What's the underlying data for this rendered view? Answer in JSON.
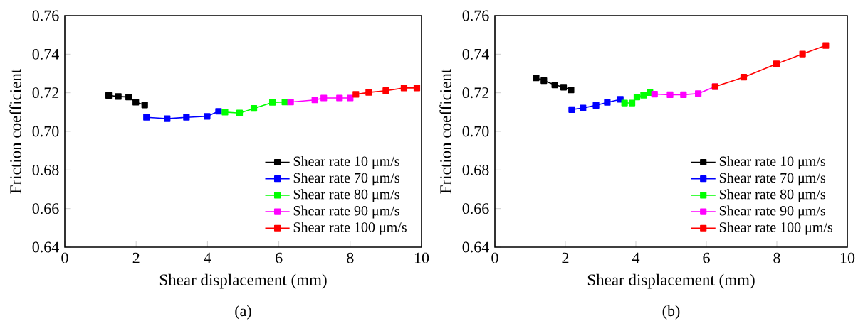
{
  "chart_data": [
    {
      "type": "line",
      "xlabel": "Shear displacement (mm)",
      "ylabel": "Friction coefficient",
      "annotations": [
        "(a)"
      ],
      "xlim": [
        0,
        10
      ],
      "xticks": [
        0,
        2,
        4,
        6,
        8,
        10
      ],
      "ylim": [
        0.64,
        0.76
      ],
      "yticks": [
        0.64,
        0.66,
        0.68,
        {
          "value": 0.7,
          "label": "0.70"
        },
        0.72,
        0.74,
        0.76
      ],
      "legend": "bottom right",
      "marker": "square",
      "line_style": "solid",
      "series": [
        {
          "name": "Shear rate 10 μm/s",
          "color": "#000000",
          "x": [
            1.23,
            1.5,
            1.79,
            1.99,
            2.24
          ],
          "values": [
            0.7186,
            0.7181,
            0.7178,
            0.7151,
            0.7137
          ]
        },
        {
          "name": "Shear rate 70 μm/s",
          "color": "#0000ff",
          "x": [
            2.29,
            2.87,
            3.41,
            3.99,
            4.31
          ],
          "values": [
            0.7073,
            0.7066,
            0.7073,
            0.7078,
            0.7104
          ]
        },
        {
          "name": "Shear rate 80 μm/s",
          "color": "#00ff00",
          "x": [
            4.49,
            4.9,
            5.3,
            5.82,
            6.17
          ],
          "values": [
            0.71,
            0.7095,
            0.7119,
            0.715,
            0.7152
          ]
        },
        {
          "name": "Shear rate 90 μm/s",
          "color": "#ff00ff",
          "x": [
            6.33,
            7.01,
            7.26,
            7.7,
            8.0
          ],
          "values": [
            0.7152,
            0.7163,
            0.7173,
            0.7173,
            0.7173
          ]
        },
        {
          "name": "Shear rate 100 μm/s",
          "color": "#ff0000",
          "x": [
            8.16,
            8.52,
            9.0,
            9.51,
            9.87
          ],
          "values": [
            0.7192,
            0.7202,
            0.7211,
            0.7225,
            0.7225
          ]
        }
      ]
    },
    {
      "type": "line",
      "xlabel": "Shear displacement (mm)",
      "ylabel": "Friction coefficient",
      "annotations": [
        "(b)"
      ],
      "xlim": [
        0,
        10
      ],
      "xticks": [
        0,
        2,
        4,
        6,
        8,
        10
      ],
      "ylim": [
        0.64,
        0.76
      ],
      "yticks": [
        0.64,
        0.66,
        0.68,
        {
          "value": 0.7,
          "label": "0.70"
        },
        0.72,
        0.74,
        0.76
      ],
      "legend": "bottom right",
      "marker": "square",
      "line_style": "solid",
      "series": [
        {
          "name": "Shear rate 10 μm/s",
          "color": "#000000",
          "x": [
            1.17,
            1.39,
            1.7,
            1.95,
            2.16
          ],
          "values": [
            0.7277,
            0.7263,
            0.7241,
            0.7229,
            0.7215
          ]
        },
        {
          "name": "Shear rate 70 μm/s",
          "color": "#0000ff",
          "x": [
            2.18,
            2.5,
            2.87,
            3.19,
            3.56
          ],
          "values": [
            0.7113,
            0.7121,
            0.7135,
            0.715,
            0.7166
          ]
        },
        {
          "name": "Shear rate 80 μm/s",
          "color": "#00ff00",
          "x": [
            3.68,
            3.89,
            4.03,
            4.22,
            4.4
          ],
          "values": [
            0.7147,
            0.7147,
            0.7178,
            0.7187,
            0.7201
          ]
        },
        {
          "name": "Shear rate 90 μm/s",
          "color": "#ff00ff",
          "x": [
            4.53,
            4.97,
            5.35,
            5.77,
            6.25
          ],
          "values": [
            0.7193,
            0.719,
            0.719,
            0.7196,
            0.7232
          ]
        },
        {
          "name": "Shear rate 100 μm/s",
          "color": "#ff0000",
          "x": [
            6.25,
            7.06,
            7.99,
            8.73,
            9.39
          ],
          "values": [
            0.7232,
            0.7281,
            0.735,
            0.7401,
            0.7445
          ]
        }
      ]
    }
  ]
}
